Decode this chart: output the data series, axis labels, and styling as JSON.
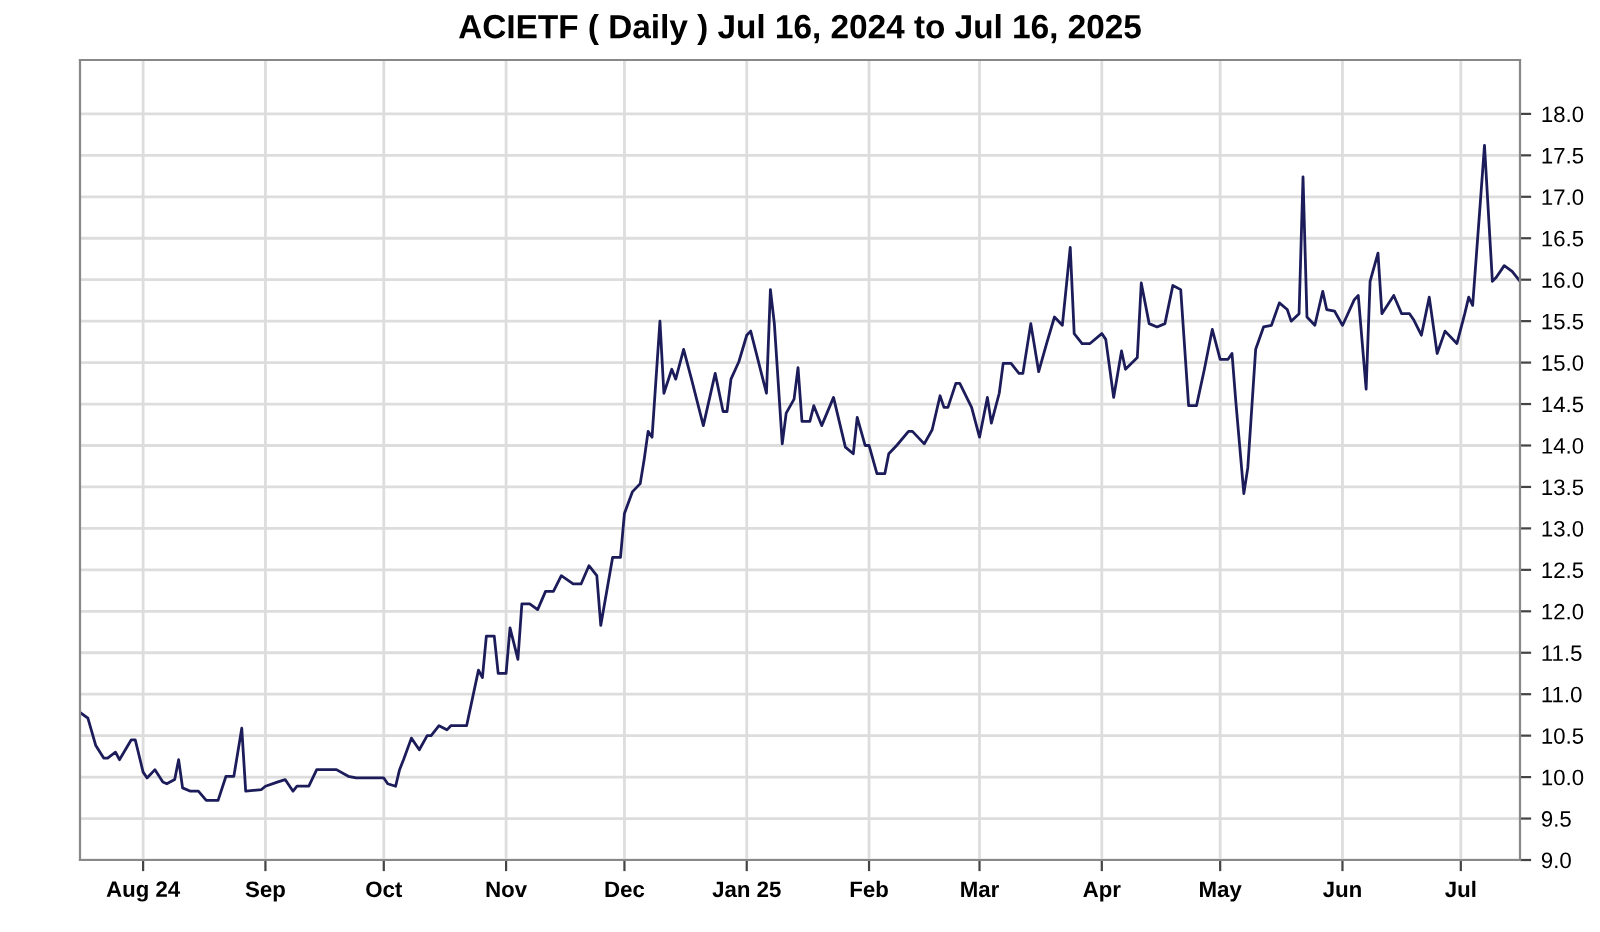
{
  "chart_data": {
    "type": "line",
    "title": "ACIETF ( Daily ) Jul 16, 2024 to Jul 16, 2025",
    "x": [
      "2024-07-16",
      "2024-07-18",
      "2024-07-20",
      "2024-07-22",
      "2024-07-23",
      "2024-07-25",
      "2024-07-26",
      "2024-07-29",
      "2024-07-30",
      "2024-08-01",
      "2024-08-02",
      "2024-08-04",
      "2024-08-06",
      "2024-08-07",
      "2024-08-09",
      "2024-08-10",
      "2024-08-11",
      "2024-08-13",
      "2024-08-15",
      "2024-08-17",
      "2024-08-20",
      "2024-08-22",
      "2024-08-24",
      "2024-08-26",
      "2024-08-27",
      "2024-08-31",
      "2024-09-01",
      "2024-09-04",
      "2024-09-06",
      "2024-09-08",
      "2024-09-09",
      "2024-09-12",
      "2024-09-14",
      "2024-09-19",
      "2024-09-22",
      "2024-09-24",
      "2024-10-01",
      "2024-10-02",
      "2024-10-04",
      "2024-10-05",
      "2024-10-06",
      "2024-10-08",
      "2024-10-10",
      "2024-10-12",
      "2024-10-13",
      "2024-10-15",
      "2024-10-17",
      "2024-10-18",
      "2024-10-22",
      "2024-10-25",
      "2024-10-26",
      "2024-10-27",
      "2024-10-29",
      "2024-10-30",
      "2024-11-01",
      "2024-11-02",
      "2024-11-04",
      "2024-11-05",
      "2024-11-07",
      "2024-11-09",
      "2024-11-11",
      "2024-11-13",
      "2024-11-15",
      "2024-11-18",
      "2024-11-20",
      "2024-11-22",
      "2024-11-24",
      "2024-11-25",
      "2024-11-28",
      "2024-11-30",
      "2024-12-01",
      "2024-12-03",
      "2024-12-05",
      "2024-12-06",
      "2024-12-07",
      "2024-12-08",
      "2024-12-10",
      "2024-12-11",
      "2024-12-13",
      "2024-12-14",
      "2024-12-16",
      "2024-12-18",
      "2024-12-21",
      "2024-12-24",
      "2024-12-26",
      "2024-12-27",
      "2024-12-28",
      "2024-12-30",
      "2025-01-01",
      "2025-01-02",
      "2025-01-06",
      "2025-01-07",
      "2025-01-08",
      "2025-01-10",
      "2025-01-11",
      "2025-01-13",
      "2025-01-14",
      "2025-01-15",
      "2025-01-17",
      "2025-01-18",
      "2025-01-20",
      "2025-01-23",
      "2025-01-26",
      "2025-01-28",
      "2025-01-29",
      "2025-01-31",
      "2025-02-01",
      "2025-02-03",
      "2025-02-05",
      "2025-02-06",
      "2025-02-08",
      "2025-02-11",
      "2025-02-12",
      "2025-02-15",
      "2025-02-17",
      "2025-02-19",
      "2025-02-20",
      "2025-02-21",
      "2025-02-23",
      "2025-02-24",
      "2025-02-27",
      "2025-03-01",
      "2025-03-03",
      "2025-03-04",
      "2025-03-06",
      "2025-03-07",
      "2025-03-09",
      "2025-03-11",
      "2025-03-12",
      "2025-03-14",
      "2025-03-16",
      "2025-03-18",
      "2025-03-20",
      "2025-03-22",
      "2025-03-24",
      "2025-03-25",
      "2025-03-27",
      "2025-03-29",
      "2025-04-01",
      "2025-04-02",
      "2025-04-04",
      "2025-04-06",
      "2025-04-07",
      "2025-04-10",
      "2025-04-11",
      "2025-04-13",
      "2025-04-15",
      "2025-04-17",
      "2025-04-19",
      "2025-04-21",
      "2025-04-23",
      "2025-04-25",
      "2025-04-27",
      "2025-04-29",
      "2025-05-01",
      "2025-05-03",
      "2025-05-04",
      "2025-05-05",
      "2025-05-07",
      "2025-05-08",
      "2025-05-10",
      "2025-05-12",
      "2025-05-14",
      "2025-05-16",
      "2025-05-18",
      "2025-05-19",
      "2025-05-21",
      "2025-05-22",
      "2025-05-23",
      "2025-05-25",
      "2025-05-27",
      "2025-05-28",
      "2025-05-30",
      "2025-06-01",
      "2025-06-02",
      "2025-06-04",
      "2025-06-05",
      "2025-06-07",
      "2025-06-08",
      "2025-06-10",
      "2025-06-11",
      "2025-06-14",
      "2025-06-16",
      "2025-06-18",
      "2025-06-19",
      "2025-06-21",
      "2025-06-23",
      "2025-06-25",
      "2025-06-27",
      "2025-06-30",
      "2025-07-02",
      "2025-07-03",
      "2025-07-04",
      "2025-07-06",
      "2025-07-07",
      "2025-07-09",
      "2025-07-10",
      "2025-07-12",
      "2025-07-14",
      "2025-07-16"
    ],
    "series": [
      {
        "color": "#1c1c5a",
        "values": [
          10.78,
          10.71,
          10.38,
          10.23,
          10.23,
          10.3,
          10.21,
          10.45,
          10.45,
          10.06,
          9.99,
          10.09,
          9.94,
          9.92,
          9.97,
          10.21,
          9.87,
          9.83,
          9.83,
          9.72,
          9.72,
          10.01,
          10.01,
          10.59,
          9.83,
          9.85,
          9.89,
          9.94,
          9.97,
          9.83,
          9.89,
          9.89,
          10.09,
          10.09,
          10.01,
          9.99,
          9.99,
          9.92,
          9.89,
          10.09,
          10.21,
          10.47,
          10.33,
          10.5,
          10.5,
          10.62,
          10.57,
          10.62,
          10.62,
          11.29,
          11.2,
          11.7,
          11.7,
          11.25,
          11.25,
          11.8,
          11.42,
          12.09,
          12.09,
          12.02,
          12.24,
          12.24,
          12.43,
          12.33,
          12.33,
          12.55,
          12.43,
          11.83,
          12.65,
          12.65,
          13.18,
          13.44,
          13.54,
          13.83,
          14.17,
          14.1,
          15.5,
          14.63,
          14.92,
          14.8,
          15.16,
          14.8,
          14.24,
          14.87,
          14.41,
          14.41,
          14.8,
          15.01,
          15.33,
          15.38,
          14.63,
          15.88,
          15.47,
          14.02,
          14.39,
          14.56,
          14.94,
          14.29,
          14.29,
          14.48,
          14.24,
          14.58,
          13.98,
          13.9,
          14.34,
          14.0,
          14.0,
          13.66,
          13.66,
          13.9,
          14.0,
          14.17,
          14.17,
          14.02,
          14.19,
          14.6,
          14.46,
          14.46,
          14.75,
          14.75,
          14.46,
          14.1,
          14.58,
          14.27,
          14.63,
          14.99,
          14.99,
          14.87,
          14.87,
          15.47,
          14.89,
          15.23,
          15.55,
          15.45,
          16.39,
          15.35,
          15.23,
          15.23,
          15.35,
          15.28,
          14.58,
          15.14,
          14.92,
          15.06,
          15.96,
          15.47,
          15.43,
          15.47,
          15.93,
          15.88,
          14.48,
          14.48,
          14.92,
          15.4,
          15.04,
          15.04,
          15.11,
          14.51,
          13.42,
          13.73,
          15.16,
          15.43,
          15.45,
          15.72,
          15.64,
          15.5,
          15.59,
          17.24,
          15.55,
          15.45,
          15.86,
          15.64,
          15.62,
          15.45,
          15.55,
          15.76,
          15.81,
          14.68,
          15.98,
          16.32,
          15.59,
          15.81,
          15.59,
          15.59,
          15.52,
          15.33,
          15.79,
          15.11,
          15.38,
          15.23,
          15.59,
          15.79,
          15.69,
          16.97,
          17.62,
          15.98,
          16.03,
          16.17,
          16.1,
          15.98
        ]
      }
    ],
    "xlim": [
      "2024-07-16",
      "2025-07-16"
    ],
    "xticks": [
      {
        "value": "2024-08-01",
        "label": "Aug 24"
      },
      {
        "value": "2024-09-01",
        "label": "Sep"
      },
      {
        "value": "2024-10-01",
        "label": "Oct"
      },
      {
        "value": "2024-11-01",
        "label": "Nov"
      },
      {
        "value": "2024-12-01",
        "label": "Dec"
      },
      {
        "value": "2025-01-01",
        "label": "Jan 25"
      },
      {
        "value": "2025-02-01",
        "label": "Feb"
      },
      {
        "value": "2025-03-01",
        "label": "Mar"
      },
      {
        "value": "2025-04-01",
        "label": "Apr"
      },
      {
        "value": "2025-05-01",
        "label": "May"
      },
      {
        "value": "2025-06-01",
        "label": "Jun"
      },
      {
        "value": "2025-07-01",
        "label": "Jul"
      }
    ],
    "ylim": [
      9.0,
      18.65
    ],
    "yticks": [
      {
        "value": 9,
        "label": "9.0"
      },
      9.5,
      {
        "value": 10,
        "label": "10.0"
      },
      10.5,
      {
        "value": 11,
        "label": "11.0"
      },
      11.5,
      {
        "value": 12,
        "label": "12.0"
      },
      12.5,
      {
        "value": 13,
        "label": "13.0"
      },
      13.5,
      {
        "value": 14,
        "label": "14.0"
      },
      14.5,
      {
        "value": 15,
        "label": "15.0"
      },
      15.5,
      {
        "value": 16,
        "label": "16.0"
      },
      16.5,
      {
        "value": 17,
        "label": "17.0"
      },
      17.5,
      {
        "value": 18,
        "label": "18.0"
      }
    ],
    "grid": true,
    "marker": "none",
    "line_style": "solid"
  }
}
